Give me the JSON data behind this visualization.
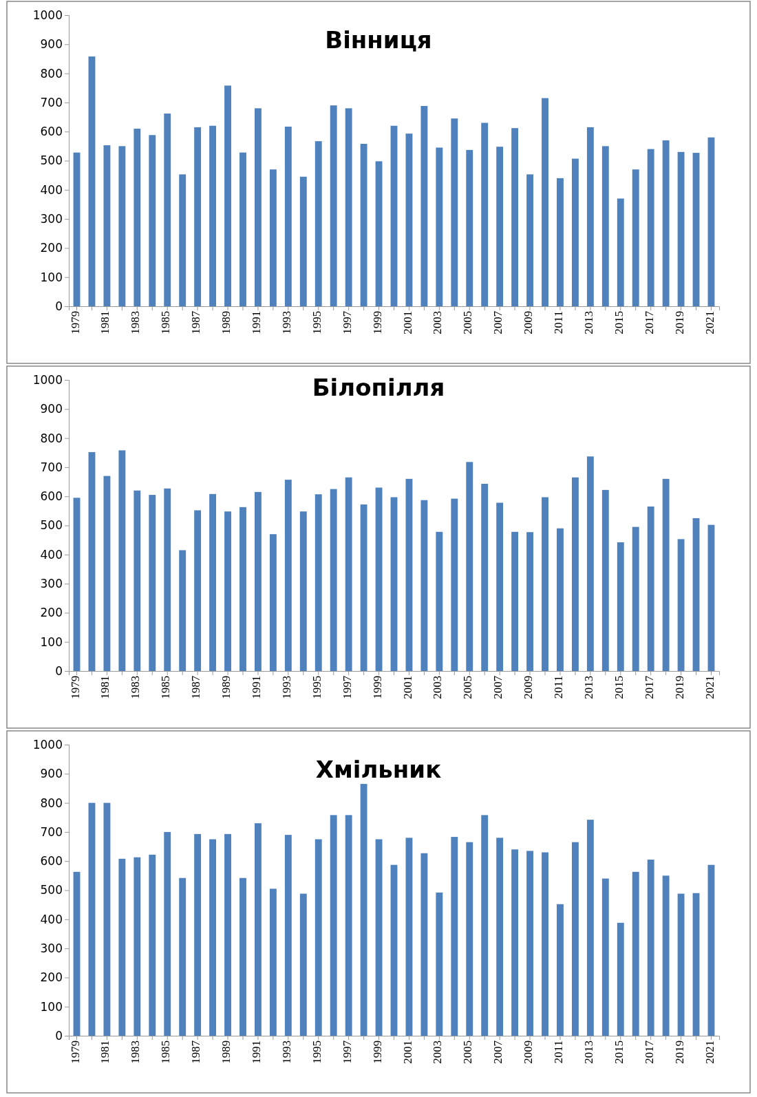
{
  "chart_data": [
    {
      "type": "bar",
      "title": "Вінниця",
      "categories": [
        "1979",
        null,
        "1981",
        null,
        "1983",
        null,
        "1985",
        null,
        "1987",
        null,
        "1989",
        null,
        "1991",
        null,
        "1993",
        null,
        "1995",
        null,
        "1997",
        null,
        "1999",
        null,
        "2001",
        null,
        "2003",
        null,
        "2005",
        null,
        "2007",
        null,
        "2009",
        null,
        "2011",
        null,
        "2013",
        null,
        "2015",
        null,
        "2017",
        null,
        "2019",
        null,
        "2021"
      ],
      "values": [
        528,
        858,
        553,
        550,
        610,
        588,
        662,
        453,
        615,
        620,
        758,
        528,
        680,
        470,
        617,
        445,
        567,
        690,
        680,
        558,
        498,
        620,
        593,
        688,
        545,
        645,
        537,
        630,
        548,
        612,
        453,
        715,
        440,
        507,
        615,
        550,
        370,
        470,
        540,
        570,
        530,
        527,
        580
      ],
      "color": "#4f81bd",
      "ylim": [
        0,
        1000
      ],
      "yticks": [
        0,
        100,
        200,
        300,
        400,
        500,
        600,
        700,
        800,
        900,
        1000
      ]
    },
    {
      "type": "bar",
      "title": "Білопілля",
      "categories": [
        "1979",
        null,
        "1981",
        null,
        "1983",
        null,
        "1985",
        null,
        "1987",
        null,
        "1989",
        null,
        "1991",
        null,
        "1993",
        null,
        "1995",
        null,
        "1997",
        null,
        "1999",
        null,
        "2001",
        null,
        "2003",
        null,
        "2005",
        null,
        "2007",
        null,
        "2009",
        null,
        "2011",
        null,
        "2013",
        null,
        "2015",
        null,
        "2017",
        null,
        "2019",
        null,
        "2021"
      ],
      "values": [
        595,
        752,
        670,
        758,
        620,
        605,
        627,
        415,
        552,
        608,
        548,
        563,
        615,
        470,
        657,
        548,
        607,
        625,
        665,
        572,
        630,
        597,
        660,
        587,
        478,
        592,
        718,
        643,
        578,
        478,
        477,
        597,
        490,
        665,
        737,
        622,
        442,
        495,
        565,
        660,
        453,
        525,
        502
      ],
      "color": "#4f81bd",
      "ylim": [
        0,
        1000
      ],
      "yticks": [
        0,
        100,
        200,
        300,
        400,
        500,
        600,
        700,
        800,
        900,
        1000
      ]
    },
    {
      "type": "bar",
      "title": "Хмільник",
      "categories": [
        "1979",
        null,
        "1981",
        null,
        "1983",
        null,
        "1985",
        null,
        "1987",
        null,
        "1989",
        null,
        "1991",
        null,
        "1993",
        null,
        "1995",
        null,
        "1997",
        null,
        "1999",
        null,
        "2001",
        null,
        "2003",
        null,
        "2005",
        null,
        "2007",
        null,
        "2009",
        null,
        "2011",
        null,
        "2013",
        null,
        "2015",
        null,
        "2017",
        null,
        "2019",
        null,
        "2021"
      ],
      "values": [
        563,
        800,
        800,
        608,
        613,
        622,
        700,
        542,
        693,
        675,
        693,
        542,
        730,
        505,
        690,
        488,
        675,
        758,
        758,
        865,
        675,
        587,
        680,
        627,
        492,
        683,
        665,
        758,
        680,
        640,
        635,
        630,
        452,
        665,
        742,
        540,
        388,
        563,
        605,
        550,
        488,
        490,
        587
      ],
      "color": "#4f81bd",
      "ylim": [
        0,
        1000
      ],
      "yticks": [
        0,
        100,
        200,
        300,
        400,
        500,
        600,
        700,
        800,
        900,
        1000
      ]
    }
  ]
}
